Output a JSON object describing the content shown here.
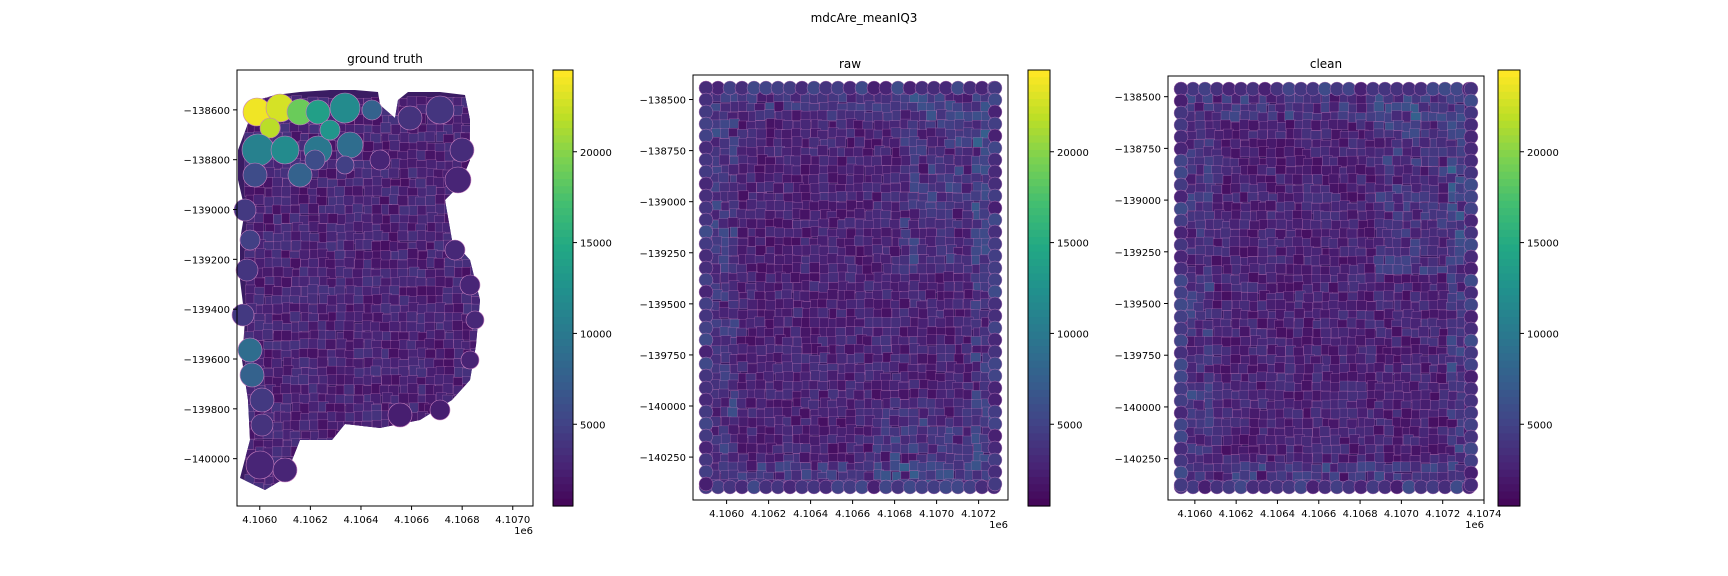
{
  "figure": {
    "title": "mdcAre_meanIQ3"
  },
  "colors": {
    "viridis": [
      "#440154",
      "#482475",
      "#414487",
      "#355f8d",
      "#2a788e",
      "#21908d",
      "#22a884",
      "#42be71",
      "#7ad151",
      "#bddf26",
      "#fde725"
    ],
    "edge": "#c77fbf",
    "dense_fill": "#3a1c63"
  },
  "chart_data": [
    {
      "type": "heatmap",
      "title": "ground truth",
      "x_ticks": [
        "4.1060",
        "4.1062",
        "4.1064",
        "4.1066",
        "4.1068",
        "4.1070"
      ],
      "x_tick_values": [
        4106000,
        4106200,
        4106400,
        4106600,
        4106800,
        4107000
      ],
      "x_offset": "1e6",
      "y_ticks": [
        "−138600",
        "−138800",
        "−139000",
        "−139200",
        "−139400",
        "−139600",
        "−139800",
        "−140000"
      ],
      "y_tick_values": [
        -138600,
        -138800,
        -139000,
        -139200,
        -139400,
        -139600,
        -139800,
        -140000
      ],
      "xlim": [
        4105910,
        4107080
      ],
      "ylim": [
        -140190,
        -138440
      ],
      "colorbar": {
        "ticks": [
          "5000",
          "10000",
          "15000",
          "20000"
        ],
        "tick_values": [
          5000,
          10000,
          15000,
          20000
        ],
        "range": [
          500,
          24500
        ]
      }
    },
    {
      "type": "heatmap",
      "title": "raw",
      "x_ticks": [
        "4.1060",
        "4.1062",
        "4.1064",
        "4.1066",
        "4.1068",
        "4.1070",
        "4.1072"
      ],
      "x_tick_values": [
        4106000,
        4106200,
        4106400,
        4106600,
        4106800,
        4107000,
        4107200
      ],
      "x_offset": "1e6",
      "y_ticks": [
        "−138500",
        "−138750",
        "−139000",
        "−139250",
        "−139500",
        "−139750",
        "−140000",
        "−140250"
      ],
      "y_tick_values": [
        -138500,
        -138750,
        -139000,
        -139250,
        -139500,
        -139750,
        -140000,
        -140250
      ],
      "xlim": [
        4105840,
        4107340
      ],
      "ylim": [
        -140460,
        -138380
      ],
      "colorbar": {
        "ticks": [
          "5000",
          "10000",
          "15000",
          "20000"
        ],
        "tick_values": [
          5000,
          10000,
          15000,
          20000
        ],
        "range": [
          500,
          24500
        ]
      }
    },
    {
      "type": "heatmap",
      "title": "clean",
      "x_ticks": [
        "4.1060",
        "4.1062",
        "4.1064",
        "4.1066",
        "4.1068",
        "4.1070",
        "4.1072",
        "4.1074"
      ],
      "x_tick_values": [
        4106000,
        4106200,
        4106400,
        4106600,
        4106800,
        4107000,
        4107200,
        4107400
      ],
      "x_offset": "1e6",
      "y_ticks": [
        "−138500",
        "−138750",
        "−139000",
        "−139250",
        "−139500",
        "−139750",
        "−140000",
        "−140250"
      ],
      "y_tick_values": [
        -138500,
        -138750,
        -139000,
        -139250,
        -139500,
        -139750,
        -140000,
        -140250
      ],
      "xlim": [
        4105870,
        4107400
      ],
      "ylim": [
        -140450,
        -138400
      ],
      "colorbar": {
        "ticks": [
          "5000",
          "10000",
          "15000",
          "20000"
        ],
        "tick_values": [
          5000,
          10000,
          15000,
          20000
        ],
        "range": [
          500,
          24500
        ]
      }
    }
  ]
}
